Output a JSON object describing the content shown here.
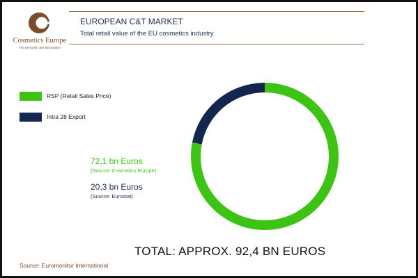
{
  "header": {
    "title": "EUROPEAN C&T MARKET",
    "subtitle": "Total retail value of the EU cosmetics industry"
  },
  "logo": {
    "name": "Cosmetics Europe",
    "tagline": "The personal care association",
    "color": "#7a4c2c"
  },
  "legend": [
    {
      "label": "RSP (Retail Sales Price)",
      "color": "#3cc314"
    },
    {
      "label": "Intra 28 Export",
      "color": "#132650"
    }
  ],
  "values": [
    {
      "amount": "72,1 bn Euros",
      "source": "(Source: Cosmetics Europe)",
      "color": "#3cc314"
    },
    {
      "amount": "20,3 bn Euros",
      "source": "(Source: Eurostat)",
      "color": "#1a2f57"
    }
  ],
  "total": "TOTAL: APPROX. 92,4 BN EUROS",
  "source_note": "Source: Euromonitor International",
  "chart_data": {
    "type": "pie",
    "style": "donut",
    "categories": [
      "RSP (Retail Sales Price)",
      "Intra 28 Export"
    ],
    "values": [
      72.1,
      20.3
    ],
    "colors": [
      "#3cc314",
      "#132650"
    ],
    "units": "bn Euros",
    "legend": "left"
  }
}
